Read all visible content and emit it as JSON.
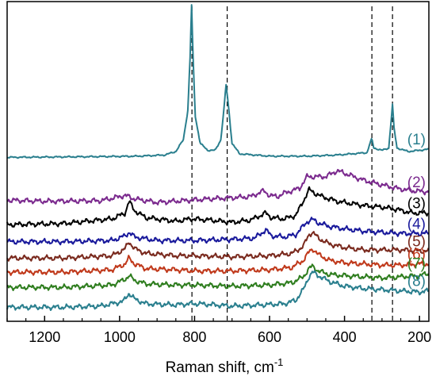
{
  "chart_data": {
    "type": "line",
    "title": "",
    "xlabel": "Raman shift, cm",
    "xlabel_superscript": "-1",
    "ylabel": "",
    "xlim": [
      1300,
      175
    ],
    "x_reversed": true,
    "x_ticks": [
      1200,
      1000,
      800,
      600,
      400,
      200
    ],
    "x_tick_labels": [
      "1200",
      "1000",
      "800",
      "600",
      "400",
      "200"
    ],
    "y_tick_labels": false,
    "grid": false,
    "legend": "none; series labels printed at right end of each trace",
    "reference_lines": {
      "style": "dashed vertical",
      "x": [
        807,
        713,
        327,
        272
      ]
    },
    "series": [
      {
        "name": "(1)",
        "color": "#2a7f8e",
        "offset": 0.62,
        "points": [
          [
            1300,
            0
          ],
          [
            1100,
            0.005
          ],
          [
            950,
            0.01
          ],
          [
            880,
            0.02
          ],
          [
            850,
            0.05
          ],
          [
            830,
            0.15
          ],
          [
            818,
            0.4
          ],
          [
            812,
            0.85
          ],
          [
            808,
            1.3
          ],
          [
            804,
            0.85
          ],
          [
            798,
            0.35
          ],
          [
            785,
            0.12
          ],
          [
            765,
            0.06
          ],
          [
            745,
            0.06
          ],
          [
            730,
            0.15
          ],
          [
            722,
            0.4
          ],
          [
            716,
            0.62
          ],
          [
            710,
            0.45
          ],
          [
            700,
            0.12
          ],
          [
            680,
            0.03
          ],
          [
            600,
            0.01
          ],
          [
            500,
            0.01
          ],
          [
            420,
            0.02
          ],
          [
            380,
            0.03
          ],
          [
            340,
            0.04
          ],
          [
            332,
            0.12
          ],
          [
            327,
            0.16
          ],
          [
            322,
            0.08
          ],
          [
            300,
            0.06
          ],
          [
            282,
            0.08
          ],
          [
            276,
            0.3
          ],
          [
            272,
            0.45
          ],
          [
            268,
            0.25
          ],
          [
            260,
            0.08
          ],
          [
            230,
            0.05
          ],
          [
            200,
            0.06
          ],
          [
            175,
            0.07
          ]
        ]
      },
      {
        "name": "(2)",
        "color": "#7b2a8e",
        "offset": 0.255,
        "points": [
          [
            1300,
            0
          ],
          [
            1200,
            -0.01
          ],
          [
            1050,
            -0.005
          ],
          [
            985,
            0.04
          ],
          [
            960,
            0.01
          ],
          [
            900,
            -0.02
          ],
          [
            810,
            0
          ],
          [
            760,
            0.01
          ],
          [
            700,
            0.02
          ],
          [
            650,
            0.03
          ],
          [
            615,
            0.08
          ],
          [
            600,
            0.04
          ],
          [
            580,
            0.03
          ],
          [
            560,
            0.06
          ],
          [
            520,
            0.1
          ],
          [
            500,
            0.2
          ],
          [
            480,
            0.2
          ],
          [
            450,
            0.2
          ],
          [
            420,
            0.25
          ],
          [
            400,
            0.23
          ],
          [
            350,
            0.17
          ],
          [
            300,
            0.13
          ],
          [
            260,
            0.1
          ],
          [
            220,
            0.08
          ],
          [
            175,
            0.07
          ]
        ]
      },
      {
        "name": "(3)",
        "color": "#000000",
        "offset": 0.045,
        "points": [
          [
            1300,
            0
          ],
          [
            1150,
            0.01
          ],
          [
            1020,
            0.05
          ],
          [
            985,
            0.1
          ],
          [
            975,
            0.2
          ],
          [
            960,
            0.12
          ],
          [
            930,
            0.06
          ],
          [
            850,
            0.03
          ],
          [
            810,
            0.05
          ],
          [
            760,
            0.04
          ],
          [
            700,
            0.02
          ],
          [
            650,
            0.04
          ],
          [
            610,
            0.1
          ],
          [
            595,
            0.06
          ],
          [
            560,
            0.05
          ],
          [
            530,
            0.08
          ],
          [
            510,
            0.2
          ],
          [
            495,
            0.3
          ],
          [
            480,
            0.27
          ],
          [
            460,
            0.24
          ],
          [
            420,
            0.2
          ],
          [
            380,
            0.18
          ],
          [
            340,
            0.16
          ],
          [
            300,
            0.15
          ],
          [
            260,
            0.13
          ],
          [
            220,
            0.1
          ],
          [
            175,
            0.1
          ]
        ]
      },
      {
        "name": "(4)",
        "color": "#1a1a9c",
        "offset": -0.1,
        "points": [
          [
            1300,
            0
          ],
          [
            1150,
            0
          ],
          [
            1020,
            0.01
          ],
          [
            985,
            0.05
          ],
          [
            975,
            0.08
          ],
          [
            960,
            0.04
          ],
          [
            900,
            0.01
          ],
          [
            800,
            0.01
          ],
          [
            700,
            0.02
          ],
          [
            640,
            0.03
          ],
          [
            610,
            0.1
          ],
          [
            595,
            0.05
          ],
          [
            560,
            0.04
          ],
          [
            530,
            0.06
          ],
          [
            500,
            0.17
          ],
          [
            485,
            0.19
          ],
          [
            470,
            0.16
          ],
          [
            440,
            0.13
          ],
          [
            400,
            0.11
          ],
          [
            350,
            0.09
          ],
          [
            300,
            0.08
          ],
          [
            250,
            0.07
          ],
          [
            200,
            0.07
          ],
          [
            175,
            0.07
          ]
        ]
      },
      {
        "name": "(5)",
        "color": "#7a2a1e",
        "offset": -0.24,
        "points": [
          [
            1300,
            0
          ],
          [
            1150,
            0
          ],
          [
            1020,
            0.02
          ],
          [
            985,
            0.08
          ],
          [
            975,
            0.14
          ],
          [
            960,
            0.08
          ],
          [
            930,
            0.04
          ],
          [
            850,
            0.02
          ],
          [
            800,
            0.02
          ],
          [
            700,
            0.01
          ],
          [
            600,
            0.02
          ],
          [
            540,
            0.04
          ],
          [
            510,
            0.1
          ],
          [
            495,
            0.2
          ],
          [
            485,
            0.22
          ],
          [
            470,
            0.17
          ],
          [
            440,
            0.12
          ],
          [
            400,
            0.09
          ],
          [
            350,
            0.07
          ],
          [
            300,
            0.07
          ],
          [
            250,
            0.07
          ],
          [
            200,
            0.06
          ],
          [
            175,
            0.06
          ]
        ]
      },
      {
        "name": "(6)",
        "color": "#c0391b",
        "offset": -0.36,
        "points": [
          [
            1300,
            0
          ],
          [
            1150,
            0
          ],
          [
            1020,
            0.02
          ],
          [
            985,
            0.07
          ],
          [
            975,
            0.12
          ],
          [
            960,
            0.07
          ],
          [
            930,
            0.03
          ],
          [
            850,
            0.02
          ],
          [
            800,
            0.01
          ],
          [
            700,
            0.01
          ],
          [
            600,
            0.02
          ],
          [
            540,
            0.04
          ],
          [
            510,
            0.1
          ],
          [
            495,
            0.17
          ],
          [
            485,
            0.2
          ],
          [
            470,
            0.15
          ],
          [
            440,
            0.1
          ],
          [
            400,
            0.08
          ],
          [
            350,
            0.07
          ],
          [
            300,
            0.06
          ],
          [
            250,
            0.06
          ],
          [
            200,
            0.07
          ],
          [
            175,
            0.07
          ]
        ]
      },
      {
        "name": "(7)",
        "color": "#2e7d1e",
        "offset": -0.49,
        "points": [
          [
            1300,
            0
          ],
          [
            1150,
            0
          ],
          [
            1020,
            0.02
          ],
          [
            985,
            0.07
          ],
          [
            975,
            0.1
          ],
          [
            960,
            0.06
          ],
          [
            930,
            0.03
          ],
          [
            850,
            0.02
          ],
          [
            800,
            0.02
          ],
          [
            700,
            0.01
          ],
          [
            600,
            0.02
          ],
          [
            540,
            0.04
          ],
          [
            510,
            0.09
          ],
          [
            495,
            0.16
          ],
          [
            485,
            0.18
          ],
          [
            470,
            0.14
          ],
          [
            440,
            0.11
          ],
          [
            400,
            0.1
          ],
          [
            350,
            0.09
          ],
          [
            300,
            0.08
          ],
          [
            250,
            0.09
          ],
          [
            200,
            0.1
          ],
          [
            175,
            0.12
          ]
        ]
      },
      {
        "name": "(8)",
        "color": "#2a7f8e",
        "offset": -0.66,
        "points": [
          [
            1300,
            0
          ],
          [
            1150,
            0
          ],
          [
            1050,
            0.01
          ],
          [
            990,
            0.05
          ],
          [
            975,
            0.12
          ],
          [
            960,
            0.07
          ],
          [
            930,
            0.03
          ],
          [
            850,
            0.02
          ],
          [
            810,
            0.03
          ],
          [
            790,
            0.03
          ],
          [
            700,
            0.01
          ],
          [
            620,
            0.02
          ],
          [
            560,
            0.03
          ],
          [
            530,
            0.06
          ],
          [
            510,
            0.15
          ],
          [
            495,
            0.26
          ],
          [
            485,
            0.3
          ],
          [
            470,
            0.27
          ],
          [
            440,
            0.22
          ],
          [
            400,
            0.18
          ],
          [
            350,
            0.16
          ],
          [
            300,
            0.15
          ],
          [
            250,
            0.14
          ],
          [
            200,
            0.13
          ],
          [
            175,
            0.14
          ]
        ]
      }
    ]
  }
}
